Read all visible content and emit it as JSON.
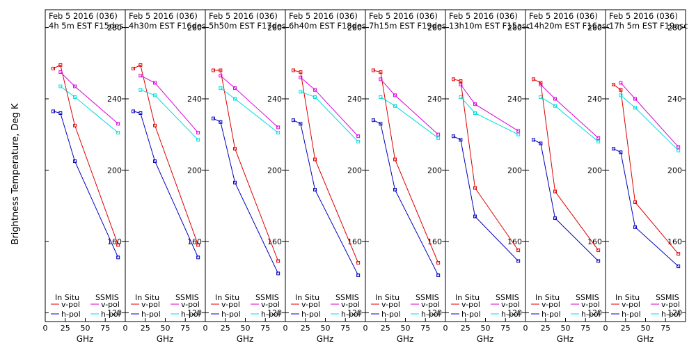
{
  "y_axis_label": "Brightness Temperature, Deg K",
  "x_axis_label": "GHz",
  "legend": {
    "in_situ_label": "In Situ",
    "ssmis_label": "SSMIS",
    "v_pol_label": "v-pol",
    "h_pol_label": "h-pol"
  },
  "colors": {
    "in_situ_v": "#dd0000",
    "in_situ_h": "#0000bb",
    "ssmis_v": "#dd00dd",
    "ssmis_h": "#00dddd"
  },
  "chart_data": [
    {
      "type": "line",
      "title_line1": "Feb 5 2016 (036)",
      "title_line2": "4h 5m  EST F15des",
      "xlabel": "GHz",
      "ylabel": "Brightness Temperature, Deg K",
      "xlim": [
        0,
        100
      ],
      "ylim": [
        115,
        290
      ],
      "xticks": [
        0,
        25,
        50,
        75
      ],
      "yticks": [
        120,
        160,
        200,
        240,
        280
      ],
      "series": [
        {
          "name": "In Situ v-pol",
          "x": [
            10,
            19,
            37,
            91
          ],
          "y": [
            257,
            259,
            225,
            158
          ]
        },
        {
          "name": "In Situ h-pol",
          "x": [
            10,
            19,
            37,
            91
          ],
          "y": [
            233,
            232,
            205,
            151
          ]
        },
        {
          "name": "SSMIS v-pol",
          "x": [
            19,
            37,
            91
          ],
          "y": [
            255,
            247,
            226
          ]
        },
        {
          "name": "SSMIS h-pol",
          "x": [
            19,
            37,
            91
          ],
          "y": [
            247,
            241,
            221
          ]
        }
      ]
    },
    {
      "type": "line",
      "title_line1": "Feb 5 2016 (036)",
      "title_line2": "4h30m  EST F16des",
      "xlabel": "GHz",
      "ylabel": "Brightness Temperature, Deg K",
      "xlim": [
        0,
        100
      ],
      "ylim": [
        115,
        290
      ],
      "xticks": [
        0,
        25,
        50,
        75
      ],
      "yticks": [
        120,
        160,
        200,
        240,
        280
      ],
      "series": [
        {
          "name": "In Situ v-pol",
          "x": [
            10,
            19,
            37,
            91
          ],
          "y": [
            257,
            259,
            225,
            158
          ]
        },
        {
          "name": "In Situ h-pol",
          "x": [
            10,
            19,
            37,
            91
          ],
          "y": [
            233,
            232,
            205,
            151
          ]
        },
        {
          "name": "SSMIS v-pol",
          "x": [
            19,
            37,
            91
          ],
          "y": [
            253,
            249,
            221
          ]
        },
        {
          "name": "SSMIS h-pol",
          "x": [
            19,
            37,
            91
          ],
          "y": [
            245,
            242,
            217
          ]
        }
      ]
    },
    {
      "type": "line",
      "title_line1": "Feb 5 2016 (036)",
      "title_line2": "5h50m  EST F17des",
      "xlabel": "GHz",
      "ylabel": "Brightness Temperature, Deg K",
      "xlim": [
        0,
        100
      ],
      "ylim": [
        115,
        290
      ],
      "xticks": [
        0,
        25,
        50,
        75
      ],
      "yticks": [
        120,
        160,
        200,
        240,
        280
      ],
      "series": [
        {
          "name": "In Situ v-pol",
          "x": [
            10,
            19,
            37,
            91
          ],
          "y": [
            256,
            256,
            212,
            149
          ]
        },
        {
          "name": "In Situ h-pol",
          "x": [
            10,
            19,
            37,
            91
          ],
          "y": [
            229,
            227,
            193,
            142
          ]
        },
        {
          "name": "SSMIS v-pol",
          "x": [
            19,
            37,
            91
          ],
          "y": [
            253,
            246,
            224
          ]
        },
        {
          "name": "SSMIS h-pol",
          "x": [
            19,
            37,
            91
          ],
          "y": [
            246,
            240,
            221
          ]
        }
      ]
    },
    {
      "type": "line",
      "title_line1": "Feb 5 2016 (036)",
      "title_line2": "6h40m  EST F18des",
      "xlabel": "GHz",
      "ylabel": "Brightness Temperature, Deg K",
      "xlim": [
        0,
        100
      ],
      "ylim": [
        115,
        290
      ],
      "xticks": [
        0,
        25,
        50,
        75
      ],
      "yticks": [
        120,
        160,
        200,
        240,
        280
      ],
      "series": [
        {
          "name": "In Situ v-pol",
          "x": [
            10,
            19,
            37,
            91
          ],
          "y": [
            256,
            255,
            206,
            148
          ]
        },
        {
          "name": "In Situ h-pol",
          "x": [
            10,
            19,
            37,
            91
          ],
          "y": [
            228,
            226,
            189,
            141
          ]
        },
        {
          "name": "SSMIS v-pol",
          "x": [
            19,
            37,
            91
          ],
          "y": [
            252,
            245,
            219
          ]
        },
        {
          "name": "SSMIS h-pol",
          "x": [
            19,
            37,
            91
          ],
          "y": [
            244,
            241,
            216
          ]
        }
      ]
    },
    {
      "type": "line",
      "title_line1": "Feb 5 2016 (036)",
      "title_line2": "7h15m  EST F19des",
      "xlabel": "GHz",
      "ylabel": "Brightness Temperature, Deg K",
      "xlim": [
        0,
        100
      ],
      "ylim": [
        115,
        290
      ],
      "xticks": [
        0,
        25,
        50,
        75
      ],
      "yticks": [
        120,
        160,
        200,
        240,
        280
      ],
      "series": [
        {
          "name": "In Situ v-pol",
          "x": [
            10,
            19,
            37,
            91
          ],
          "y": [
            256,
            255,
            206,
            148
          ]
        },
        {
          "name": "In Situ h-pol",
          "x": [
            10,
            19,
            37,
            91
          ],
          "y": [
            228,
            226,
            189,
            141
          ]
        },
        {
          "name": "SSMIS v-pol",
          "x": [
            19,
            37,
            91
          ],
          "y": [
            251,
            242,
            220
          ]
        },
        {
          "name": "SSMIS h-pol",
          "x": [
            19,
            37,
            91
          ],
          "y": [
            241,
            236,
            218
          ]
        }
      ]
    },
    {
      "type": "line",
      "title_line1": "Feb 5 2016 (036)",
      "title_line2": "13h10m  EST F15asc",
      "xlabel": "GHz",
      "ylabel": "Brightness Temperature, Deg K",
      "xlim": [
        0,
        100
      ],
      "ylim": [
        115,
        290
      ],
      "xticks": [
        0,
        25,
        50,
        75
      ],
      "yticks": [
        120,
        160,
        200,
        240,
        280
      ],
      "series": [
        {
          "name": "In Situ v-pol",
          "x": [
            10,
            19,
            37,
            91
          ],
          "y": [
            251,
            250,
            190,
            155
          ]
        },
        {
          "name": "In Situ h-pol",
          "x": [
            10,
            19,
            37,
            91
          ],
          "y": [
            219,
            217,
            174,
            149
          ]
        },
        {
          "name": "SSMIS v-pol",
          "x": [
            19,
            37,
            91
          ],
          "y": [
            248,
            237,
            222
          ]
        },
        {
          "name": "SSMIS h-pol",
          "x": [
            19,
            37,
            91
          ],
          "y": [
            241,
            232,
            220
          ]
        }
      ]
    },
    {
      "type": "line",
      "title_line1": "Feb 5 2016 (036)",
      "title_line2": "14h20m  EST F16asc",
      "xlabel": "GHz",
      "ylabel": "Brightness Temperature, Deg K",
      "xlim": [
        0,
        100
      ],
      "ylim": [
        115,
        290
      ],
      "xticks": [
        0,
        25,
        50,
        75
      ],
      "yticks": [
        120,
        160,
        200,
        240,
        280
      ],
      "series": [
        {
          "name": "In Situ v-pol",
          "x": [
            10,
            19,
            37,
            91
          ],
          "y": [
            251,
            249,
            188,
            155
          ]
        },
        {
          "name": "In Situ h-pol",
          "x": [
            10,
            19,
            37,
            91
          ],
          "y": [
            217,
            215,
            173,
            149
          ]
        },
        {
          "name": "SSMIS v-pol",
          "x": [
            19,
            37,
            91
          ],
          "y": [
            248,
            240,
            218
          ]
        },
        {
          "name": "SSMIS h-pol",
          "x": [
            19,
            37,
            91
          ],
          "y": [
            241,
            236,
            216
          ]
        }
      ]
    },
    {
      "type": "line",
      "title_line1": "Feb 5 2016 (036)",
      "title_line2": "17h 5m  EST F19asc",
      "xlabel": "GHz",
      "ylabel": "Brightness Temperature, Deg K",
      "xlim": [
        0,
        100
      ],
      "ylim": [
        115,
        290
      ],
      "xticks": [
        0,
        25,
        50,
        75
      ],
      "yticks": [
        120,
        160,
        200,
        240,
        280
      ],
      "series": [
        {
          "name": "In Situ v-pol",
          "x": [
            10,
            19,
            37,
            91
          ],
          "y": [
            248,
            245,
            182,
            153
          ]
        },
        {
          "name": "In Situ h-pol",
          "x": [
            10,
            19,
            37,
            91
          ],
          "y": [
            212,
            210,
            168,
            146
          ]
        },
        {
          "name": "SSMIS v-pol",
          "x": [
            19,
            37,
            91
          ],
          "y": [
            249,
            240,
            213
          ]
        },
        {
          "name": "SSMIS h-pol",
          "x": [
            19,
            37,
            91
          ],
          "y": [
            242,
            235,
            211
          ]
        }
      ]
    }
  ]
}
